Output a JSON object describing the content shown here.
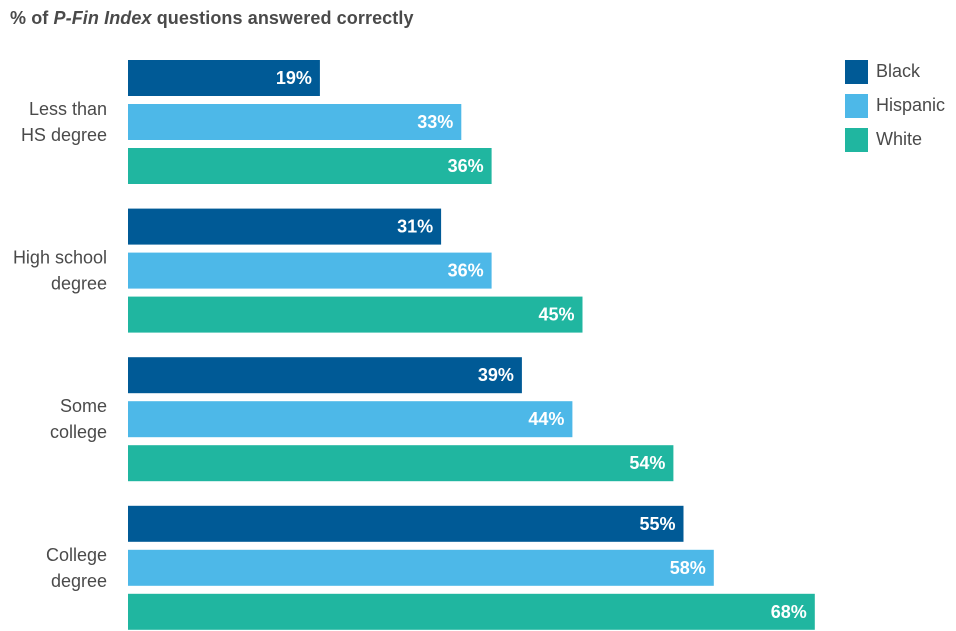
{
  "chart_data": {
    "type": "bar",
    "orientation": "horizontal",
    "title_prefix": "% of ",
    "title_emphasis": "P-Fin Index",
    "title_suffix": " questions answered correctly",
    "categories": [
      [
        "Less than",
        "HS degree"
      ],
      [
        "High school",
        "degree"
      ],
      [
        "Some",
        "college"
      ],
      [
        "College",
        "degree"
      ]
    ],
    "series": [
      {
        "name": "Black",
        "color": "#005a96",
        "values": [
          19,
          31,
          39,
          55
        ],
        "labels": [
          "19%",
          "31%",
          "39%",
          "55%"
        ]
      },
      {
        "name": "Hispanic",
        "color": "#4db8e8",
        "values": [
          33,
          36,
          44,
          58
        ],
        "labels": [
          "33%",
          "36%",
          "44%",
          "58%"
        ]
      },
      {
        "name": "White",
        "color": "#20b6a0",
        "values": [
          36,
          45,
          54,
          68
        ],
        "labels": [
          "36%",
          "45%",
          "54%",
          "68%"
        ]
      }
    ],
    "xlim": [
      0,
      100
    ],
    "grid": false,
    "legend_position": "top-right"
  }
}
